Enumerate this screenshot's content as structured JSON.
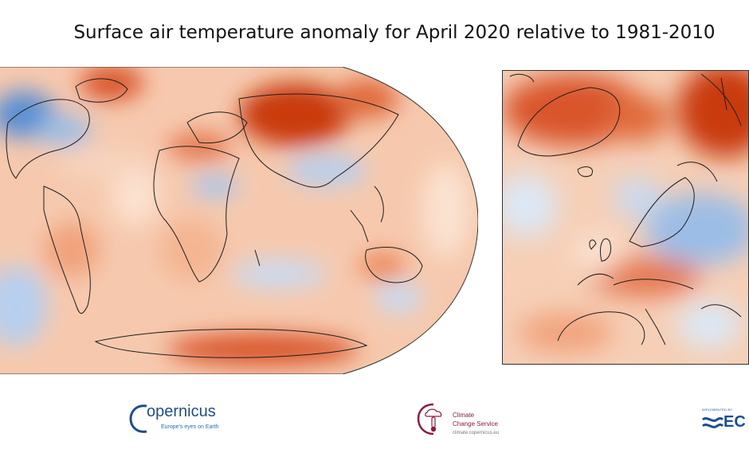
{
  "title": "Surface air temperature anomaly for April 2020 relative to 1981-2010",
  "colors": {
    "warm_strong": "#c93a10",
    "warm": "#ef9a70",
    "warm_light": "#fbe2d0",
    "cool_light": "#dbe8f5",
    "cool": "#9bbde6",
    "cool_strong": "#5a8fd3",
    "coastline": "#1e1e1e",
    "copernicus_blue": "#1f4d8a",
    "c3s_red": "#8c1d40",
    "ecmwf_blue": "#1b4f91"
  },
  "logos": {
    "copernicus": {
      "name": "opernicus",
      "tagline": "Europe's eyes on Earth"
    },
    "c3s": {
      "line1": "Climate",
      "line2": "Change Service",
      "url": "climate.copernicus.eu"
    },
    "ecmwf": {
      "tagline": "IMPLEMENTED BY",
      "name": "EC"
    }
  }
}
